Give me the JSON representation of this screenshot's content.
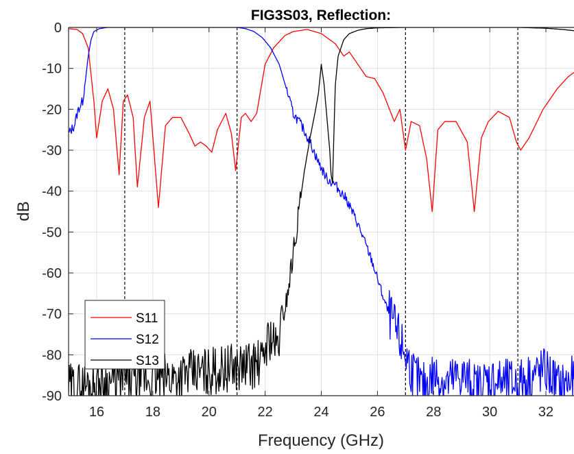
{
  "chart_data": {
    "type": "line",
    "title": "FIG3S03, Reflection:",
    "xlabel": "Frequency (GHz)",
    "ylabel": "dB",
    "xlim": [
      15,
      33
    ],
    "ylim": [
      -90,
      0
    ],
    "xticks": [
      16,
      18,
      20,
      22,
      24,
      26,
      28,
      30,
      32
    ],
    "xtick_labels": [
      "16",
      "18",
      "20",
      "22",
      "24",
      "26",
      "28",
      "30",
      "32"
    ],
    "yticks": [
      0,
      -10,
      -20,
      -30,
      -40,
      -50,
      -60,
      -70,
      -80,
      -90
    ],
    "ytick_labels": [
      "0",
      "-10",
      "-20",
      "-30",
      "-40",
      "-50",
      "-60",
      "-70",
      "-80",
      "-90"
    ],
    "grid": true,
    "legend_location": "bottom-left",
    "markers": [
      17,
      21,
      27,
      31
    ],
    "series": [
      {
        "name": "S11",
        "color": "#ff0000",
        "x": [
          15.0,
          15.3,
          15.5,
          15.7,
          15.9,
          16.0,
          16.2,
          16.4,
          16.6,
          16.8,
          16.95,
          17.1,
          17.3,
          17.45,
          17.7,
          17.9,
          18.2,
          18.45,
          18.7,
          19.0,
          19.3,
          19.5,
          19.7,
          19.9,
          20.1,
          20.3,
          20.6,
          20.8,
          20.95,
          21.15,
          21.3,
          21.5,
          21.7,
          22.0,
          22.3,
          22.7,
          23.0,
          23.5,
          24.0,
          24.5,
          24.8,
          25.0,
          25.4,
          25.6,
          25.9,
          26.2,
          26.6,
          26.8,
          27.0,
          27.2,
          27.5,
          27.75,
          27.95,
          28.15,
          28.4,
          28.8,
          29.2,
          29.45,
          29.7,
          29.95,
          30.3,
          30.7,
          30.95,
          31.1,
          31.4,
          31.9,
          32.4,
          32.8,
          33.0
        ],
        "y": [
          -0.3,
          -0.5,
          -1.5,
          -5,
          -18,
          -27,
          -18,
          -15,
          -20,
          -36,
          -18,
          -16.5,
          -22,
          -39,
          -22,
          -18,
          -44,
          -24,
          -22,
          -22,
          -26,
          -29,
          -28,
          -29,
          -30.5,
          -25,
          -21,
          -26,
          -35,
          -22,
          -21,
          -23,
          -21,
          -9,
          -5,
          -2,
          -1,
          -0.5,
          -1.5,
          -4,
          -7,
          -6,
          -10,
          -12,
          -12.5,
          -16,
          -23,
          -20,
          -30,
          -23,
          -24,
          -32,
          -45,
          -25,
          -23,
          -23,
          -28,
          -45,
          -27,
          -23,
          -20.5,
          -22,
          -28,
          -30,
          -27,
          -20,
          -15,
          -12,
          -11
        ]
      },
      {
        "name": "S12",
        "color": "#0000ff",
        "x": [
          15.0,
          15.2,
          15.35,
          15.5,
          15.6,
          15.7,
          15.8,
          15.9,
          16.1,
          16.4,
          17.0,
          18.0,
          19.0,
          20.0,
          21.0,
          21.3,
          21.6,
          21.9,
          22.2,
          22.5,
          22.8,
          23.0,
          23.3,
          23.6,
          23.9,
          24.2,
          24.5,
          24.9,
          25.3,
          25.8,
          26.3,
          26.7,
          27.0,
          27.3,
          27.6,
          28.0,
          28.5,
          29.0,
          29.5,
          30.0,
          30.5,
          31.0,
          31.5,
          32.0,
          32.5,
          33.0
        ],
        "y": [
          -26,
          -24,
          -20,
          -18,
          -13,
          -7,
          -3,
          -1,
          -0.3,
          0,
          0,
          0,
          0,
          0,
          0,
          -0.3,
          -1,
          -2.5,
          -5,
          -9,
          -16,
          -21,
          -24,
          -28,
          -33,
          -37,
          -38.5,
          -42,
          -48,
          -57,
          -68,
          -75,
          -80,
          -85,
          -88,
          -85,
          -87,
          -85,
          -88,
          -86,
          -87,
          -87,
          -85,
          -84,
          -88,
          -86
        ]
      },
      {
        "name": "S13",
        "color": "#000000",
        "x": [
          15.0,
          16.0,
          17.0,
          18.0,
          19.0,
          20.0,
          21.0,
          21.9,
          22.0,
          22.2,
          22.4,
          22.6,
          22.8,
          23.0,
          23.2,
          23.4,
          23.6,
          23.8,
          23.9,
          24.0,
          24.1,
          24.2,
          24.3,
          24.35,
          24.4,
          24.5,
          24.6,
          24.8,
          25.0,
          25.3,
          25.6,
          26.0,
          27.0,
          28.0,
          29.0,
          30.0,
          31.0,
          32.0,
          32.6,
          33.0
        ],
        "y": [
          -88,
          -87,
          -86,
          -86,
          -85,
          -84,
          -83,
          -82,
          -78,
          -75,
          -79,
          -72,
          -65,
          -55,
          -45,
          -35,
          -27,
          -20,
          -16,
          -9,
          -14,
          -22,
          -30,
          -36,
          -38,
          -14,
          -7,
          -3,
          -1.5,
          -0.7,
          -0.3,
          -0.1,
          0,
          0,
          0,
          0,
          0,
          -0.2,
          -0.5,
          -0.8
        ]
      }
    ]
  }
}
